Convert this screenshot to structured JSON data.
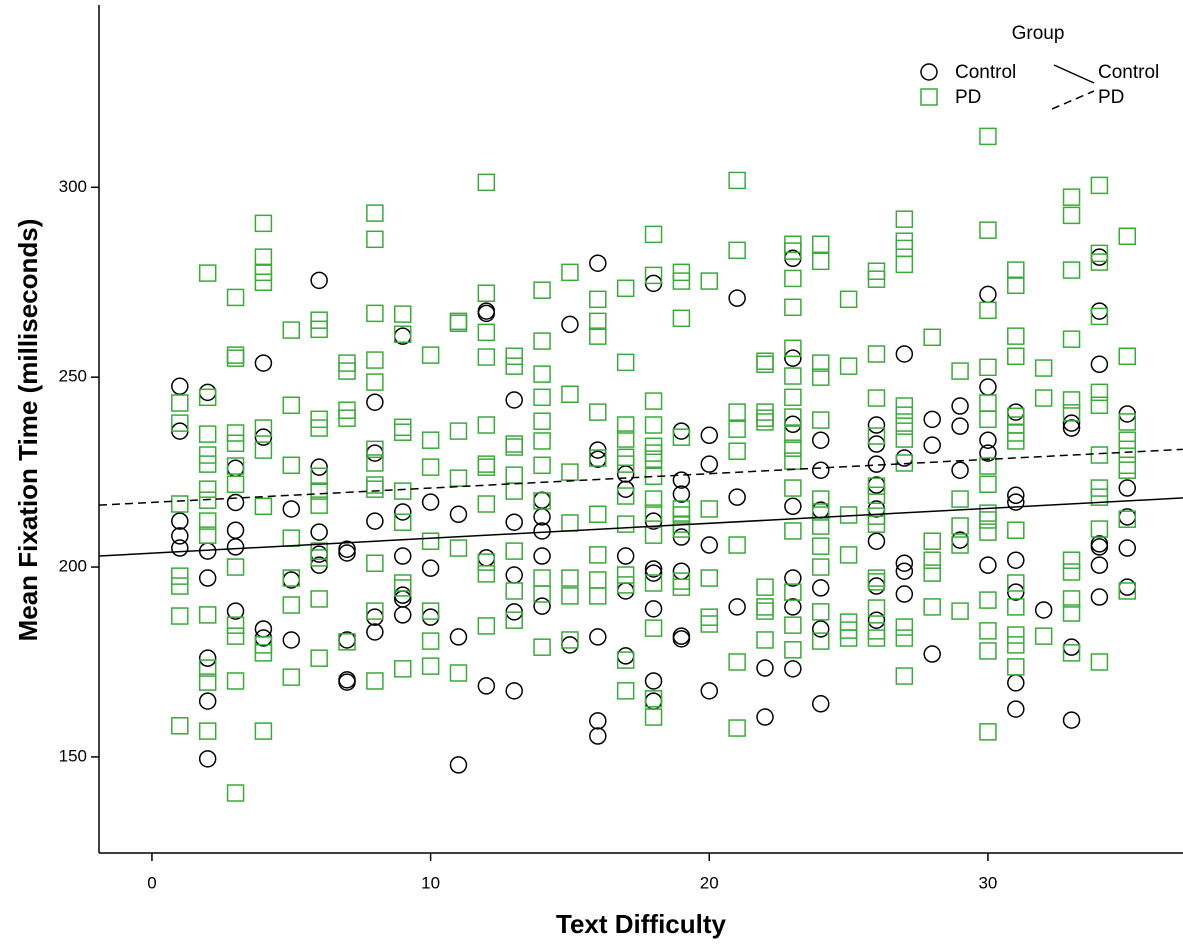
{
  "chart_data": {
    "type": "scatter",
    "x_label": "Text Difficulty",
    "y_label": "Mean Fixation Time (milliseconds)",
    "xlim": [
      -1.9,
      37
    ],
    "ylim": [
      124.7,
      348
    ],
    "xticks": [
      0,
      10,
      20,
      30
    ],
    "yticks": [
      150,
      200,
      250,
      300
    ],
    "legend": "upper right",
    "legend_title": "Group",
    "series": [
      {
        "name": "Control",
        "color": "#000000",
        "marker": "circle",
        "x": [
          1,
          1,
          1,
          1,
          1,
          2,
          2,
          2,
          2,
          2,
          2,
          3,
          3,
          3,
          3,
          3,
          4,
          4,
          4,
          4,
          5,
          5,
          5,
          6,
          6,
          6,
          6,
          6,
          7,
          7,
          7,
          7,
          7,
          8,
          8,
          8,
          8,
          8,
          9,
          9,
          9,
          9,
          9,
          9,
          10,
          10,
          10,
          11,
          11,
          11,
          12,
          12,
          12,
          12,
          13,
          13,
          13,
          13,
          13,
          14,
          14,
          14,
          14,
          14,
          15,
          15,
          16,
          16,
          16,
          16,
          16,
          16,
          17,
          17,
          17,
          17,
          17,
          18,
          18,
          18,
          18,
          18,
          18,
          18,
          19,
          19,
          19,
          19,
          19,
          19,
          19,
          20,
          20,
          20,
          20,
          21,
          21,
          21,
          22,
          22,
          23,
          23,
          23,
          23,
          23,
          23,
          23,
          24,
          24,
          24,
          24,
          24,
          24,
          26,
          26,
          26,
          26,
          26,
          26,
          26,
          26,
          27,
          27,
          27,
          27,
          27,
          28,
          28,
          28,
          29,
          29,
          29,
          29,
          30,
          30,
          30,
          30,
          30,
          31,
          31,
          31,
          31,
          31,
          31,
          31,
          32,
          33,
          33,
          33,
          33,
          34,
          34,
          34,
          34,
          34,
          34,
          34,
          35,
          35,
          35,
          35,
          35
        ],
        "values": [
          247.6,
          235.8,
          212.1,
          208.2,
          205,
          246,
          204.2,
          197.1,
          176,
          164.7,
          149.5,
          226,
          217,
          209.7,
          205.3,
          188.4,
          253.7,
          234.2,
          183.7,
          181.3,
          215.3,
          196.6,
          180.8,
          275.5,
          226.3,
          209.2,
          203.4,
          200.5,
          204.7,
          203.7,
          180.8,
          170.3,
          169.7,
          243.4,
          230,
          212.1,
          186.8,
          182.9,
          260.8,
          214.5,
          202.9,
          192.6,
          191.6,
          187.4,
          217.1,
          199.7,
          186.8,
          213.9,
          181.6,
          147.9,
          267.4,
          266.8,
          202.4,
          168.7,
          244,
          211.8,
          197.9,
          188.2,
          167.4,
          217.6,
          213.2,
          209.5,
          202.9,
          189.7,
          263.9,
          179.5,
          280,
          230.8,
          228.4,
          181.6,
          159.5,
          155.5,
          224.5,
          220.5,
          202.9,
          193.7,
          176.6,
          274.7,
          212.1,
          199.5,
          198.4,
          189,
          170,
          164.7,
          235.8,
          222.9,
          219.2,
          207.9,
          198.9,
          181.8,
          181.1,
          234.7,
          227.1,
          205.8,
          167.4,
          270.8,
          218.4,
          189.5,
          173.4,
          160.5,
          281.3,
          255,
          237.6,
          216,
          197.1,
          189.5,
          173.2,
          233.4,
          225.5,
          215,
          194.5,
          183.7,
          164,
          237.4,
          232.4,
          227.1,
          221.6,
          215.3,
          206.8,
          195,
          186,
          256.1,
          228.7,
          201,
          198.9,
          192.9,
          238.9,
          232.1,
          177.1,
          242.4,
          237.1,
          225.5,
          207.1,
          271.8,
          247.4,
          233.4,
          230,
          200.5,
          240.8,
          218.9,
          217.1,
          201.8,
          193.4,
          169.5,
          162.6,
          188.7,
          237.9,
          236.6,
          178.9,
          159.7,
          281.6,
          267.4,
          253.4,
          206.1,
          205.3,
          200.5,
          192.1,
          240.3,
          220.8,
          213.2,
          205,
          194.7
        ]
      },
      {
        "name": "PD",
        "color": "#3aaa3a",
        "marker": "square",
        "x": [
          1,
          1,
          1,
          1,
          1,
          1,
          1,
          2,
          2,
          2,
          2,
          2,
          2,
          2,
          2,
          2,
          2,
          2,
          2,
          2,
          3,
          3,
          3,
          3,
          3,
          3,
          3,
          3,
          3,
          3,
          3,
          3,
          4,
          4,
          4,
          4,
          4,
          4,
          4,
          4,
          4,
          4,
          5,
          5,
          5,
          5,
          5,
          5,
          5,
          6,
          6,
          6,
          6,
          6,
          6,
          6,
          6,
          6,
          6,
          6,
          7,
          7,
          7,
          7,
          7,
          8,
          8,
          8,
          8,
          8,
          8,
          8,
          8,
          8,
          8,
          8,
          8,
          9,
          9,
          9,
          9,
          9,
          9,
          9,
          9,
          9,
          10,
          10,
          10,
          10,
          10,
          10,
          10,
          11,
          11,
          11,
          11,
          11,
          11,
          12,
          12,
          12,
          12,
          12,
          12,
          12,
          12,
          12,
          12,
          12,
          13,
          13,
          13,
          13,
          13,
          13,
          13,
          13,
          13,
          14,
          14,
          14,
          14,
          14,
          14,
          14,
          14,
          14,
          14,
          14,
          15,
          15,
          15,
          15,
          15,
          15,
          15,
          16,
          16,
          16,
          16,
          16,
          16,
          16,
          16,
          16,
          17,
          17,
          17,
          17,
          17,
          17,
          17,
          17,
          17,
          17,
          17,
          17,
          18,
          18,
          18,
          18,
          18,
          18,
          18,
          18,
          18,
          18,
          18,
          18,
          18,
          18,
          18,
          19,
          19,
          19,
          19,
          19,
          19,
          19,
          19,
          19,
          19,
          20,
          20,
          20,
          20,
          20,
          21,
          21,
          21,
          21,
          21,
          21,
          21,
          21,
          22,
          22,
          22,
          22,
          22,
          22,
          22,
          22,
          22,
          23,
          23,
          23,
          23,
          23,
          23,
          23,
          23,
          23,
          23,
          23,
          23,
          23,
          23,
          23,
          23,
          24,
          24,
          24,
          24,
          24,
          24,
          24,
          24,
          24,
          24,
          24,
          24,
          25,
          25,
          25,
          25,
          25,
          25,
          25,
          26,
          26,
          26,
          26,
          26,
          26,
          26,
          26,
          26,
          26,
          26,
          26,
          26,
          26,
          27,
          27,
          27,
          27,
          27,
          27,
          27,
          27,
          27,
          27,
          27,
          27,
          28,
          28,
          28,
          28,
          28,
          29,
          29,
          29,
          29,
          29,
          30,
          30,
          30,
          30,
          30,
          30,
          30,
          30,
          30,
          30,
          30,
          30,
          30,
          30,
          30,
          31,
          31,
          31,
          31,
          31,
          31,
          31,
          31,
          31,
          31,
          31,
          31,
          31,
          31,
          32,
          32,
          32,
          33,
          33,
          33,
          33,
          33,
          33,
          33,
          33,
          33,
          33,
          33,
          34,
          34,
          34,
          34,
          34,
          34,
          34,
          34,
          34,
          34,
          34,
          35,
          35,
          35,
          35,
          35,
          35,
          35,
          35,
          35
        ],
        "values": [
          243.2,
          237.9,
          216.6,
          197.6,
          195,
          187.1,
          158.2,
          277.4,
          244.7,
          235,
          229.5,
          227.1,
          220.5,
          217.6,
          212.1,
          208.4,
          187.4,
          173.4,
          169.7,
          156.8,
          271,
          255.8,
          255,
          235.3,
          232.6,
          226.6,
          221.8,
          200,
          184.7,
          181.8,
          170,
          140.5,
          290.5,
          281.6,
          277.6,
          275,
          236.6,
          230.8,
          216,
          179.5,
          177.4,
          156.8,
          262.4,
          242.6,
          226.8,
          207.6,
          197.1,
          190,
          171,
          265,
          262.6,
          238.9,
          236.6,
          223.9,
          220,
          216.3,
          204.2,
          202.4,
          191.6,
          176,
          253.7,
          251.6,
          241.3,
          239.2,
          180.3,
          293.2,
          286.3,
          266.8,
          254.5,
          248.7,
          231,
          227.4,
          221.6,
          220.5,
          201,
          188.4,
          170,
          266.6,
          261.3,
          236.8,
          235.5,
          220,
          211.8,
          195.8,
          194.5,
          173.2,
          255.8,
          233.4,
          226.3,
          206.8,
          188.4,
          180.5,
          173.9,
          264.7,
          264.2,
          235.8,
          223.4,
          205,
          172.1,
          301.3,
          272.1,
          261.8,
          255.3,
          237.4,
          227.1,
          226.3,
          216.6,
          201.3,
          198.2,
          184.5,
          255.5,
          252.9,
          232.4,
          231.6,
          224.2,
          220,
          204.2,
          193.7,
          186,
          272.9,
          259.5,
          250.8,
          244.7,
          238.4,
          233.2,
          226.8,
          217.4,
          197.1,
          192.9,
          178.9,
          277.6,
          245.5,
          225,
          211.6,
          197.1,
          192.4,
          180.8,
          270.5,
          264.7,
          260.8,
          240.8,
          228.7,
          213.9,
          203.2,
          196.6,
          192.4,
          273.4,
          253.9,
          237.4,
          233.7,
          228.9,
          227.1,
          218.7,
          211.3,
          197.9,
          195.3,
          175.5,
          167.4,
          287.6,
          276.8,
          243.7,
          237.4,
          231.8,
          230,
          228.4,
          223.9,
          217.9,
          214.2,
          208.4,
          195.8,
          183.9,
          165.3,
          160.5,
          277.6,
          275.3,
          265.5,
          234.2,
          215.3,
          213.7,
          211.3,
          210,
          196.3,
          194.7,
          275.3,
          215.3,
          197.1,
          186.8,
          185,
          301.8,
          283.4,
          240.8,
          236.3,
          230.5,
          205.8,
          175,
          157.6,
          254.2,
          253.4,
          240.8,
          239.2,
          238.2,
          194.7,
          189.5,
          188.4,
          180.8,
          285,
          283.2,
          276,
          268.4,
          257.6,
          250.3,
          244.7,
          239.5,
          235,
          231.3,
          227.9,
          220.8,
          209.5,
          193.4,
          184.7,
          178.2,
          285,
          280.5,
          253.7,
          250,
          238.7,
          217.9,
          214.5,
          210.8,
          205.5,
          200,
          188.2,
          180.5,
          270.5,
          252.9,
          213.7,
          203.2,
          185.5,
          183.4,
          181.3,
          277.9,
          275.8,
          256.1,
          244.5,
          234.5,
          221.3,
          218.9,
          213.4,
          211.3,
          197.1,
          196.1,
          189.2,
          183.2,
          181.3,
          291.6,
          285.8,
          283.9,
          279.7,
          242.4,
          240,
          237.1,
          233.7,
          227.4,
          184.2,
          181.3,
          171.3,
          260.5,
          206.8,
          201.8,
          198.4,
          189.5,
          251.6,
          217.9,
          210.8,
          205.8,
          188.4,
          313.4,
          288.7,
          267.6,
          252.6,
          243.2,
          238.9,
          226.6,
          221.8,
          214.2,
          212.4,
          209.2,
          191.3,
          183.2,
          177.9,
          156.6,
          278.2,
          274.2,
          260.8,
          255.5,
          239.7,
          237.4,
          235.3,
          233.2,
          209.7,
          195.8,
          189.5,
          182.1,
          179.5,
          173.7,
          252.4,
          244.5,
          181.8,
          297.4,
          292.6,
          278.2,
          260,
          244,
          240.6,
          201.8,
          198.7,
          191.6,
          187.9,
          177.4,
          300.5,
          282.6,
          280.3,
          266,
          246,
          242.6,
          229.5,
          220.8,
          218.4,
          210,
          175,
          287.1,
          255.5,
          238.2,
          233.4,
          231,
          226.8,
          225.5,
          212.6,
          193.7
        ]
      }
    ],
    "fit_lines": [
      {
        "name": "Control",
        "color": "#000000",
        "style": "solid",
        "x": [
          -1.9,
          37
        ],
        "values": [
          202.9,
          218.2
        ]
      },
      {
        "name": "PD",
        "color": "#000000",
        "style": "dashed",
        "x": [
          -1.9,
          37
        ],
        "values": [
          216.3,
          231
        ]
      }
    ]
  }
}
